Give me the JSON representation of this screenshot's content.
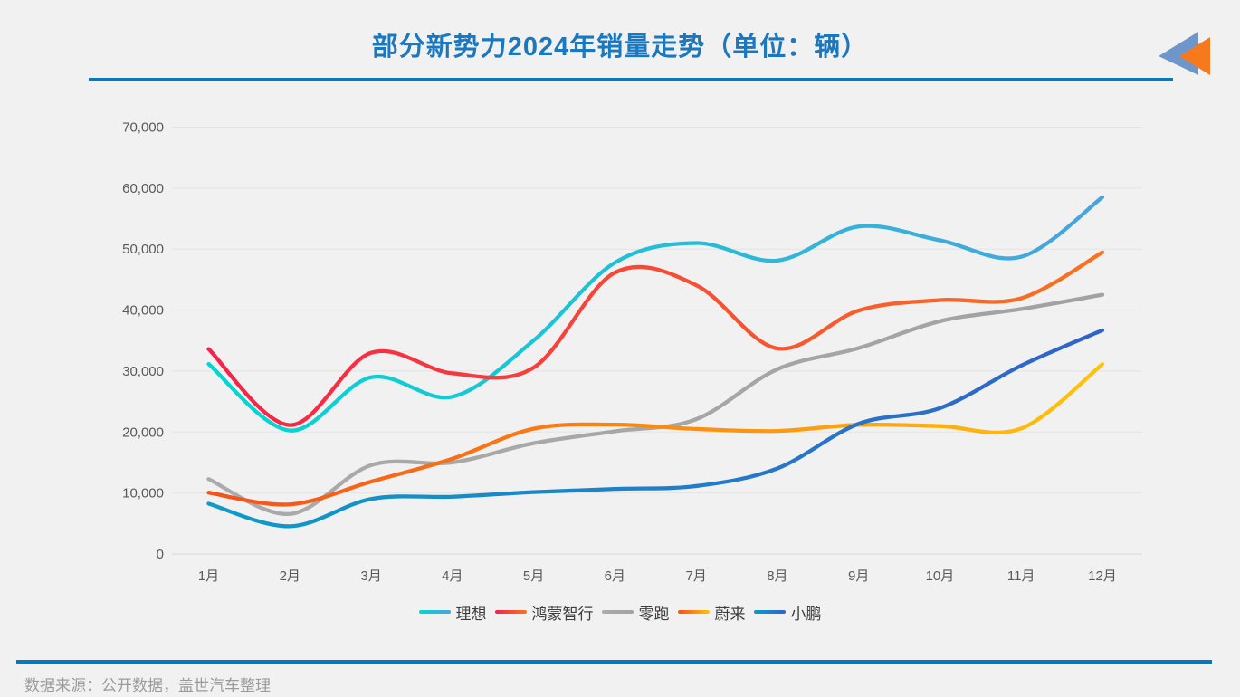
{
  "header": {
    "title": "部分新势力2024年销量走势（单位：辆）"
  },
  "logo": {
    "blue": "#6f96cb",
    "orange": "#f6791d"
  },
  "footer": {
    "source": "数据来源：公开数据，盖世汽车整理"
  },
  "chart_data": {
    "type": "line",
    "title": "部分新势力2024年销量走势（单位：辆）",
    "unit": "辆",
    "categories": [
      "1月",
      "2月",
      "3月",
      "4月",
      "5月",
      "6月",
      "7月",
      "8月",
      "9月",
      "10月",
      "11月",
      "12月"
    ],
    "series": [
      {
        "name": "理想",
        "color_start": "#02d7d2",
        "color_end": "#48a4dc",
        "values": [
          31165,
          20251,
          28984,
          25787,
          35020,
          47774,
          51000,
          48122,
          53709,
          51443,
          48740,
          58513
        ]
      },
      {
        "name": "鸿蒙智行",
        "color_start": "#f6224a",
        "color_end": "#f87420",
        "values": [
          33613,
          21142,
          33000,
          29632,
          30578,
          46141,
          44090,
          33699,
          39931,
          41643,
          41931,
          49474
        ]
      },
      {
        "name": "零跑",
        "color_start": "#ababab",
        "color_end": "#a2a2a2",
        "values": [
          12277,
          6566,
          14567,
          15005,
          18165,
          20116,
          22093,
          30305,
          33767,
          38177,
          40169,
          42517
        ]
      },
      {
        "name": "蔚来",
        "color_start": "#f4511c",
        "color_end": "#ffc30a",
        "values": [
          10055,
          8132,
          11866,
          15620,
          20544,
          21209,
          20498,
          20176,
          21181,
          20976,
          20575,
          31138
        ]
      },
      {
        "name": "小鹏",
        "color_start": "#0e9bc7",
        "color_end": "#3263c8",
        "values": [
          8250,
          4545,
          9026,
          9393,
          10146,
          10668,
          11145,
          14036,
          21352,
          23917,
          30895,
          36695
        ]
      }
    ],
    "ylim": [
      0,
      70000
    ],
    "ytick_step": 10000,
    "ytick_labels": [
      "0",
      "10,000",
      "20,000",
      "30,000",
      "40,000",
      "50,000",
      "60,000",
      "70,000"
    ],
    "grid": true,
    "legend_position": "bottom"
  }
}
